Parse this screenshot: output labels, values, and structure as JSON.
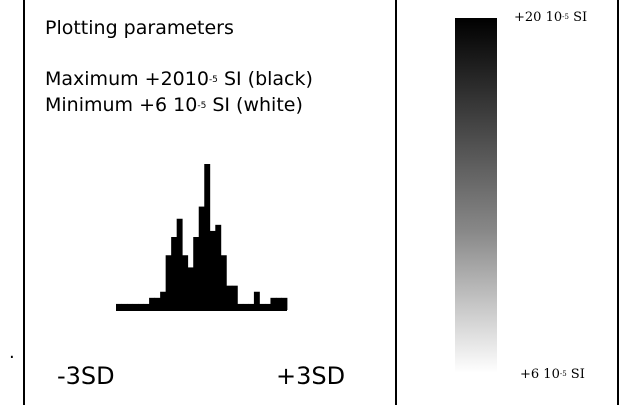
{
  "panel": {
    "title": "Plotting parameters",
    "maximum": {
      "label": "Maximum +2010",
      "exponent": "-5",
      "unit": " SI (black)"
    },
    "minimum": {
      "label": "Minimum +6 10",
      "exponent": "-5",
      "unit": " SI (white)"
    }
  },
  "histogram": {
    "axis_min_label": "-3SD",
    "axis_max_label": "+3SD"
  },
  "chart_data": {
    "type": "bar",
    "values": [
      1,
      1,
      1,
      1,
      1,
      1,
      2,
      2,
      3,
      9,
      12,
      15,
      9,
      7,
      12,
      17,
      24,
      13,
      14,
      9,
      4,
      4,
      1,
      1,
      1,
      3,
      1,
      1,
      2,
      2,
      2
    ],
    "xlabel": "",
    "ylabel": "",
    "axis_labels": [
      "-3SD",
      "+3SD"
    ]
  },
  "color_scale": {
    "top_label": "+20 10",
    "top_exponent": "-5",
    "top_unit": " SI",
    "bottom_label": "+6 10",
    "bottom_exponent": "-5",
    "bottom_unit": " SI",
    "top_color": "#000000",
    "bottom_color": "#ffffff"
  },
  "marker": {
    "dot": "."
  }
}
